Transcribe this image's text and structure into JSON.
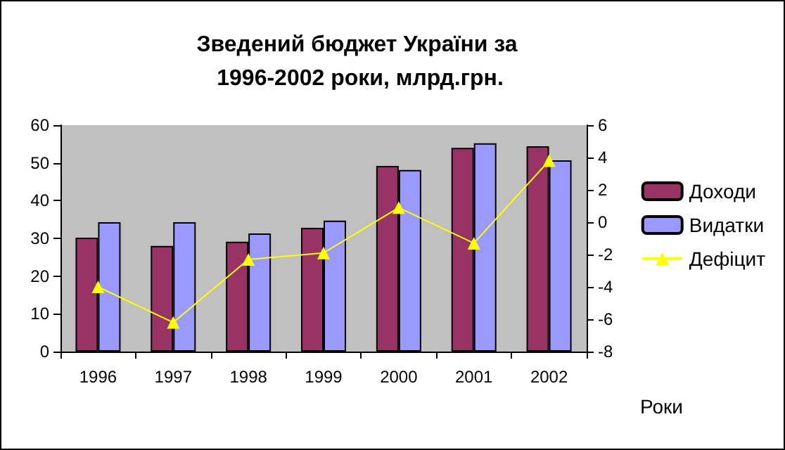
{
  "chart_data": {
    "type": "bar",
    "title": "Зведений бюджет України за 1996-2002 роки, млрд.грн.",
    "xlabel": "Роки",
    "categories": [
      "1996",
      "1997",
      "1998",
      "1999",
      "2000",
      "2001",
      "2002"
    ],
    "series": [
      {
        "name": "Доходи",
        "color": "#993366",
        "values": [
          30.2,
          28.0,
          29.1,
          32.8,
          49.2,
          54.0,
          54.4
        ]
      },
      {
        "name": "Видатки",
        "color": "#9999ff",
        "values": [
          34.3,
          34.3,
          31.3,
          34.7,
          48.1,
          55.2,
          50.7
        ]
      },
      {
        "name": "Дефіцит",
        "type": "line",
        "axis": "y2",
        "color": "#ffff00",
        "marker": "triangle",
        "values": [
          -4.0,
          -6.2,
          -2.3,
          -1.9,
          0.9,
          -1.3,
          3.8
        ]
      }
    ],
    "ylim": [
      0,
      60
    ],
    "yticks": [
      0,
      10,
      20,
      30,
      40,
      50,
      60
    ],
    "y2lim": [
      -8,
      6
    ],
    "y2ticks": [
      -8,
      -6,
      -4,
      -2,
      0,
      2,
      4,
      6
    ],
    "grid": false,
    "legend": "right"
  }
}
